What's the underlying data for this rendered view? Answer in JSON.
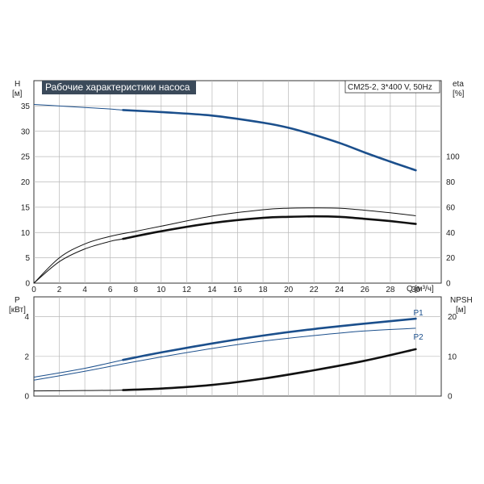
{
  "chart_data": [
    {
      "type": "line",
      "title": "Рабочие характеристики насоса",
      "model": "CM25-2, 3*400 V, 50Hz",
      "x_label": "Q",
      "x_unit": "[м³/ч]",
      "xlim": [
        0,
        32
      ],
      "x_ticks": [
        0,
        2,
        4,
        6,
        8,
        10,
        12,
        14,
        16,
        18,
        20,
        22,
        24,
        26,
        28,
        30
      ],
      "y_left_label": "H",
      "y_left_unit": "[м]",
      "y_left_lim": [
        0,
        40
      ],
      "y_left_ticks": [
        0,
        5,
        10,
        15,
        20,
        25,
        30,
        35
      ],
      "y_right_label": "eta",
      "y_right_unit": "[%]",
      "y_right_lim": [
        0,
        160
      ],
      "y_right_ticks": [
        0,
        20,
        40,
        60,
        80,
        100
      ],
      "grid": true,
      "series": [
        {
          "axis": "left",
          "color": "#1b4f8c",
          "style": "thin-to-thick",
          "thick_from": 7,
          "x": [
            0,
            2,
            4,
            6,
            7,
            10,
            14,
            18,
            20,
            22,
            24,
            26,
            28,
            30
          ],
          "y": [
            35.3,
            35.0,
            34.7,
            34.4,
            34.2,
            33.8,
            33.1,
            31.7,
            30.7,
            29.3,
            27.7,
            25.8,
            24.0,
            22.3
          ]
        },
        {
          "axis": "right",
          "color": "#111111",
          "style": "thin",
          "x": [
            0,
            2,
            4,
            6,
            8,
            10,
            14,
            18,
            20,
            22,
            24,
            26,
            28,
            30
          ],
          "y": [
            0,
            20,
            31,
            37,
            41,
            45,
            53,
            58,
            59.2,
            59.5,
            59.2,
            57.6,
            55.6,
            53.2
          ]
        },
        {
          "axis": "right",
          "color": "#111111",
          "style": "thin-to-thick",
          "thick_from": 7,
          "x": [
            0,
            2,
            4,
            6,
            7,
            10,
            14,
            18,
            20,
            22,
            24,
            26,
            28,
            30
          ],
          "y": [
            0,
            17,
            27,
            33,
            35,
            41,
            47.5,
            51.6,
            52.4,
            52.8,
            52.4,
            50.8,
            49,
            46.8
          ]
        }
      ]
    },
    {
      "type": "line",
      "x_label": "Q",
      "x_unit": "[м³/ч]",
      "xlim": [
        0,
        32
      ],
      "y_left_label": "P",
      "y_left_unit": "[кВт]",
      "y_left_lim": [
        0,
        5
      ],
      "y_left_ticks": [
        0,
        2,
        4
      ],
      "y_right_label": "NPSH",
      "y_right_unit": "[м]",
      "y_right_lim": [
        0,
        25
      ],
      "y_right_ticks": [
        0,
        10,
        20
      ],
      "grid": true,
      "series": [
        {
          "name": "P1",
          "axis": "left",
          "color": "#1b4f8c",
          "style": "thin-to-thick",
          "thick_from": 7,
          "x": [
            0,
            4,
            7,
            10,
            14,
            18,
            22,
            26,
            30
          ],
          "y": [
            0.95,
            1.4,
            1.82,
            2.2,
            2.65,
            3.05,
            3.38,
            3.65,
            3.9
          ]
        },
        {
          "name": "P2",
          "axis": "left",
          "color": "#1b4f8c",
          "style": "thin",
          "x": [
            0,
            4,
            7,
            10,
            14,
            18,
            22,
            26,
            30
          ],
          "y": [
            0.8,
            1.25,
            1.62,
            1.97,
            2.4,
            2.77,
            3.05,
            3.28,
            3.42
          ]
        },
        {
          "name": "NPSH",
          "axis": "right",
          "color": "#111111",
          "style": "thin-to-thick",
          "thick_from": 7,
          "x": [
            0,
            4,
            7,
            10,
            14,
            18,
            22,
            26,
            30
          ],
          "y": [
            1.3,
            1.4,
            1.5,
            1.9,
            2.8,
            4.4,
            6.5,
            8.9,
            11.8
          ]
        }
      ]
    }
  ]
}
